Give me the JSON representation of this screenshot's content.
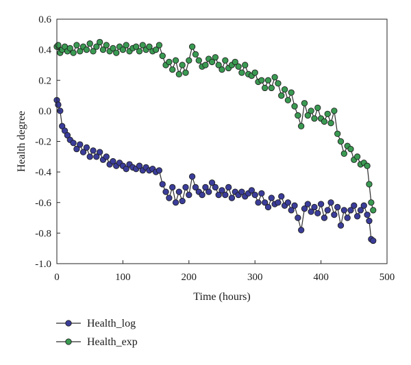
{
  "chart_data": {
    "type": "line",
    "title": "",
    "xlabel": "Time (hours)",
    "ylabel": "Health degree",
    "xlim": [
      0,
      500
    ],
    "ylim": [
      -1.0,
      0.6
    ],
    "x_ticks": [
      "0",
      "100",
      "200",
      "300",
      "400",
      "500"
    ],
    "y_ticks": [
      "-1.0",
      "-0.8",
      "-0.6",
      "-0.4",
      "-0.2",
      "0.0",
      "0.2",
      "0.4",
      "0.6"
    ],
    "grid": false,
    "legend_position": "below-left",
    "series": [
      {
        "name": "Health_log",
        "color": "#3b3d9a",
        "marker": "circle",
        "x": [
          0,
          2,
          5,
          8,
          12,
          16,
          20,
          25,
          30,
          35,
          40,
          45,
          50,
          55,
          60,
          65,
          70,
          75,
          80,
          85,
          90,
          95,
          100,
          105,
          110,
          115,
          120,
          125,
          130,
          135,
          140,
          145,
          150,
          155,
          160,
          165,
          170,
          175,
          180,
          185,
          190,
          195,
          200,
          205,
          210,
          215,
          220,
          225,
          230,
          235,
          240,
          245,
          250,
          255,
          260,
          265,
          270,
          275,
          280,
          285,
          290,
          295,
          300,
          305,
          310,
          315,
          320,
          325,
          330,
          335,
          340,
          345,
          350,
          355,
          360,
          365,
          370,
          375,
          380,
          385,
          390,
          395,
          400,
          405,
          410,
          415,
          420,
          425,
          430,
          435,
          440,
          445,
          450,
          455,
          460,
          465,
          470,
          473,
          476,
          479
        ],
        "values": [
          0.07,
          0.04,
          0.0,
          -0.1,
          -0.13,
          -0.16,
          -0.19,
          -0.21,
          -0.25,
          -0.22,
          -0.27,
          -0.24,
          -0.3,
          -0.26,
          -0.3,
          -0.27,
          -0.32,
          -0.3,
          -0.35,
          -0.33,
          -0.36,
          -0.34,
          -0.36,
          -0.38,
          -0.35,
          -0.37,
          -0.38,
          -0.36,
          -0.39,
          -0.37,
          -0.39,
          -0.38,
          -0.4,
          -0.39,
          -0.48,
          -0.53,
          -0.57,
          -0.5,
          -0.6,
          -0.53,
          -0.59,
          -0.5,
          -0.55,
          -0.43,
          -0.5,
          -0.53,
          -0.55,
          -0.5,
          -0.53,
          -0.47,
          -0.5,
          -0.55,
          -0.52,
          -0.55,
          -0.5,
          -0.57,
          -0.53,
          -0.55,
          -0.53,
          -0.56,
          -0.54,
          -0.52,
          -0.55,
          -0.6,
          -0.54,
          -0.6,
          -0.63,
          -0.57,
          -0.61,
          -0.6,
          -0.56,
          -0.62,
          -0.6,
          -0.65,
          -0.62,
          -0.7,
          -0.78,
          -0.64,
          -0.61,
          -0.66,
          -0.63,
          -0.67,
          -0.61,
          -0.7,
          -0.65,
          -0.6,
          -0.68,
          -0.63,
          -0.75,
          -0.65,
          -0.7,
          -0.65,
          -0.62,
          -0.69,
          -0.65,
          -0.62,
          -0.68,
          -0.72,
          -0.84,
          -0.85
        ]
      },
      {
        "name": "Health_exp",
        "color": "#3a9a52",
        "marker": "circle",
        "x": [
          0,
          2,
          5,
          8,
          12,
          16,
          20,
          25,
          30,
          35,
          40,
          45,
          50,
          55,
          60,
          65,
          70,
          75,
          80,
          85,
          90,
          95,
          100,
          105,
          110,
          115,
          120,
          125,
          130,
          135,
          140,
          145,
          150,
          155,
          160,
          165,
          170,
          175,
          180,
          185,
          190,
          195,
          200,
          205,
          210,
          215,
          220,
          225,
          230,
          235,
          240,
          245,
          250,
          255,
          260,
          265,
          270,
          275,
          280,
          285,
          290,
          295,
          300,
          305,
          310,
          315,
          320,
          325,
          330,
          335,
          340,
          345,
          350,
          355,
          360,
          365,
          370,
          375,
          380,
          385,
          390,
          395,
          400,
          405,
          410,
          415,
          420,
          425,
          430,
          435,
          440,
          445,
          450,
          455,
          460,
          465,
          470,
          473,
          476,
          479
        ],
        "values": [
          0.42,
          0.43,
          0.38,
          0.4,
          0.42,
          0.39,
          0.41,
          0.38,
          0.43,
          0.39,
          0.42,
          0.4,
          0.44,
          0.39,
          0.42,
          0.45,
          0.4,
          0.43,
          0.39,
          0.41,
          0.38,
          0.42,
          0.4,
          0.43,
          0.39,
          0.41,
          0.42,
          0.39,
          0.43,
          0.4,
          0.42,
          0.39,
          0.4,
          0.43,
          0.36,
          0.3,
          0.32,
          0.27,
          0.33,
          0.24,
          0.3,
          0.25,
          0.33,
          0.42,
          0.37,
          0.33,
          0.29,
          0.3,
          0.34,
          0.32,
          0.35,
          0.3,
          0.27,
          0.33,
          0.28,
          0.3,
          0.32,
          0.29,
          0.25,
          0.3,
          0.24,
          0.23,
          0.25,
          0.19,
          0.2,
          0.15,
          0.2,
          0.15,
          0.22,
          0.18,
          0.1,
          0.14,
          0.07,
          0.12,
          0.03,
          -0.03,
          -0.1,
          0.05,
          -0.03,
          0.0,
          -0.05,
          0.02,
          -0.05,
          -0.07,
          -0.02,
          -0.08,
          0.0,
          -0.15,
          -0.2,
          -0.28,
          -0.23,
          -0.25,
          -0.32,
          -0.3,
          -0.35,
          -0.34,
          -0.36,
          -0.48,
          -0.6,
          -0.65
        ]
      }
    ]
  }
}
